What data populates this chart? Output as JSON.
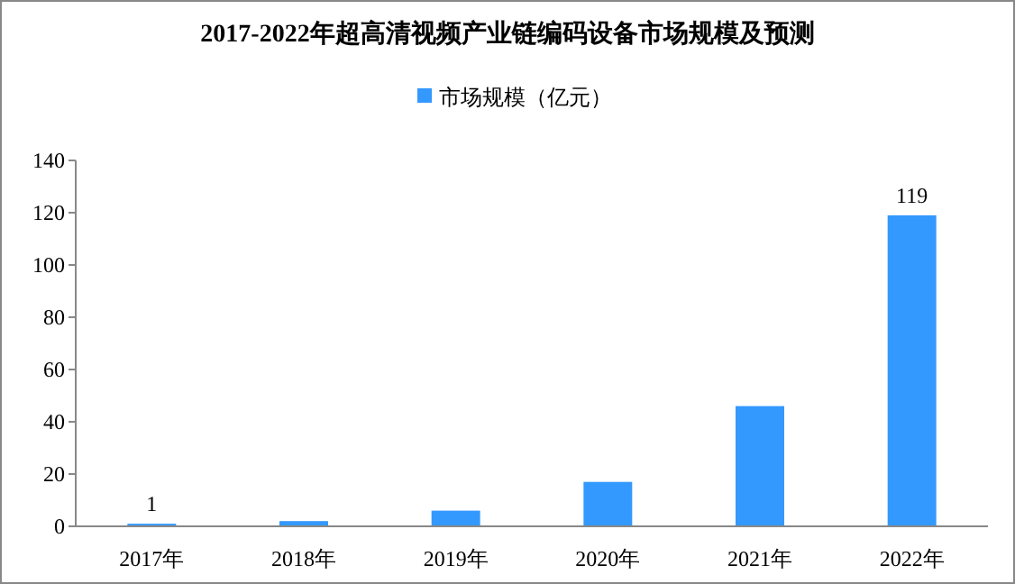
{
  "chart_data": {
    "type": "bar",
    "title": "2017-2022年超高清视频产业链编码设备市场规模及预测",
    "categories": [
      "2017年",
      "2018年",
      "2019年",
      "2020年",
      "2021年",
      "2022年"
    ],
    "series": [
      {
        "name": "市场规模（亿元）",
        "color": "#3399ff",
        "values": [
          1,
          2,
          6,
          17,
          46,
          119
        ],
        "value_labels": [
          "1",
          null,
          null,
          null,
          null,
          "119"
        ]
      }
    ],
    "ylim": [
      0,
      140
    ],
    "yticks": [
      0,
      20,
      40,
      60,
      80,
      100,
      120,
      140
    ],
    "grid": false,
    "legend": "top"
  }
}
